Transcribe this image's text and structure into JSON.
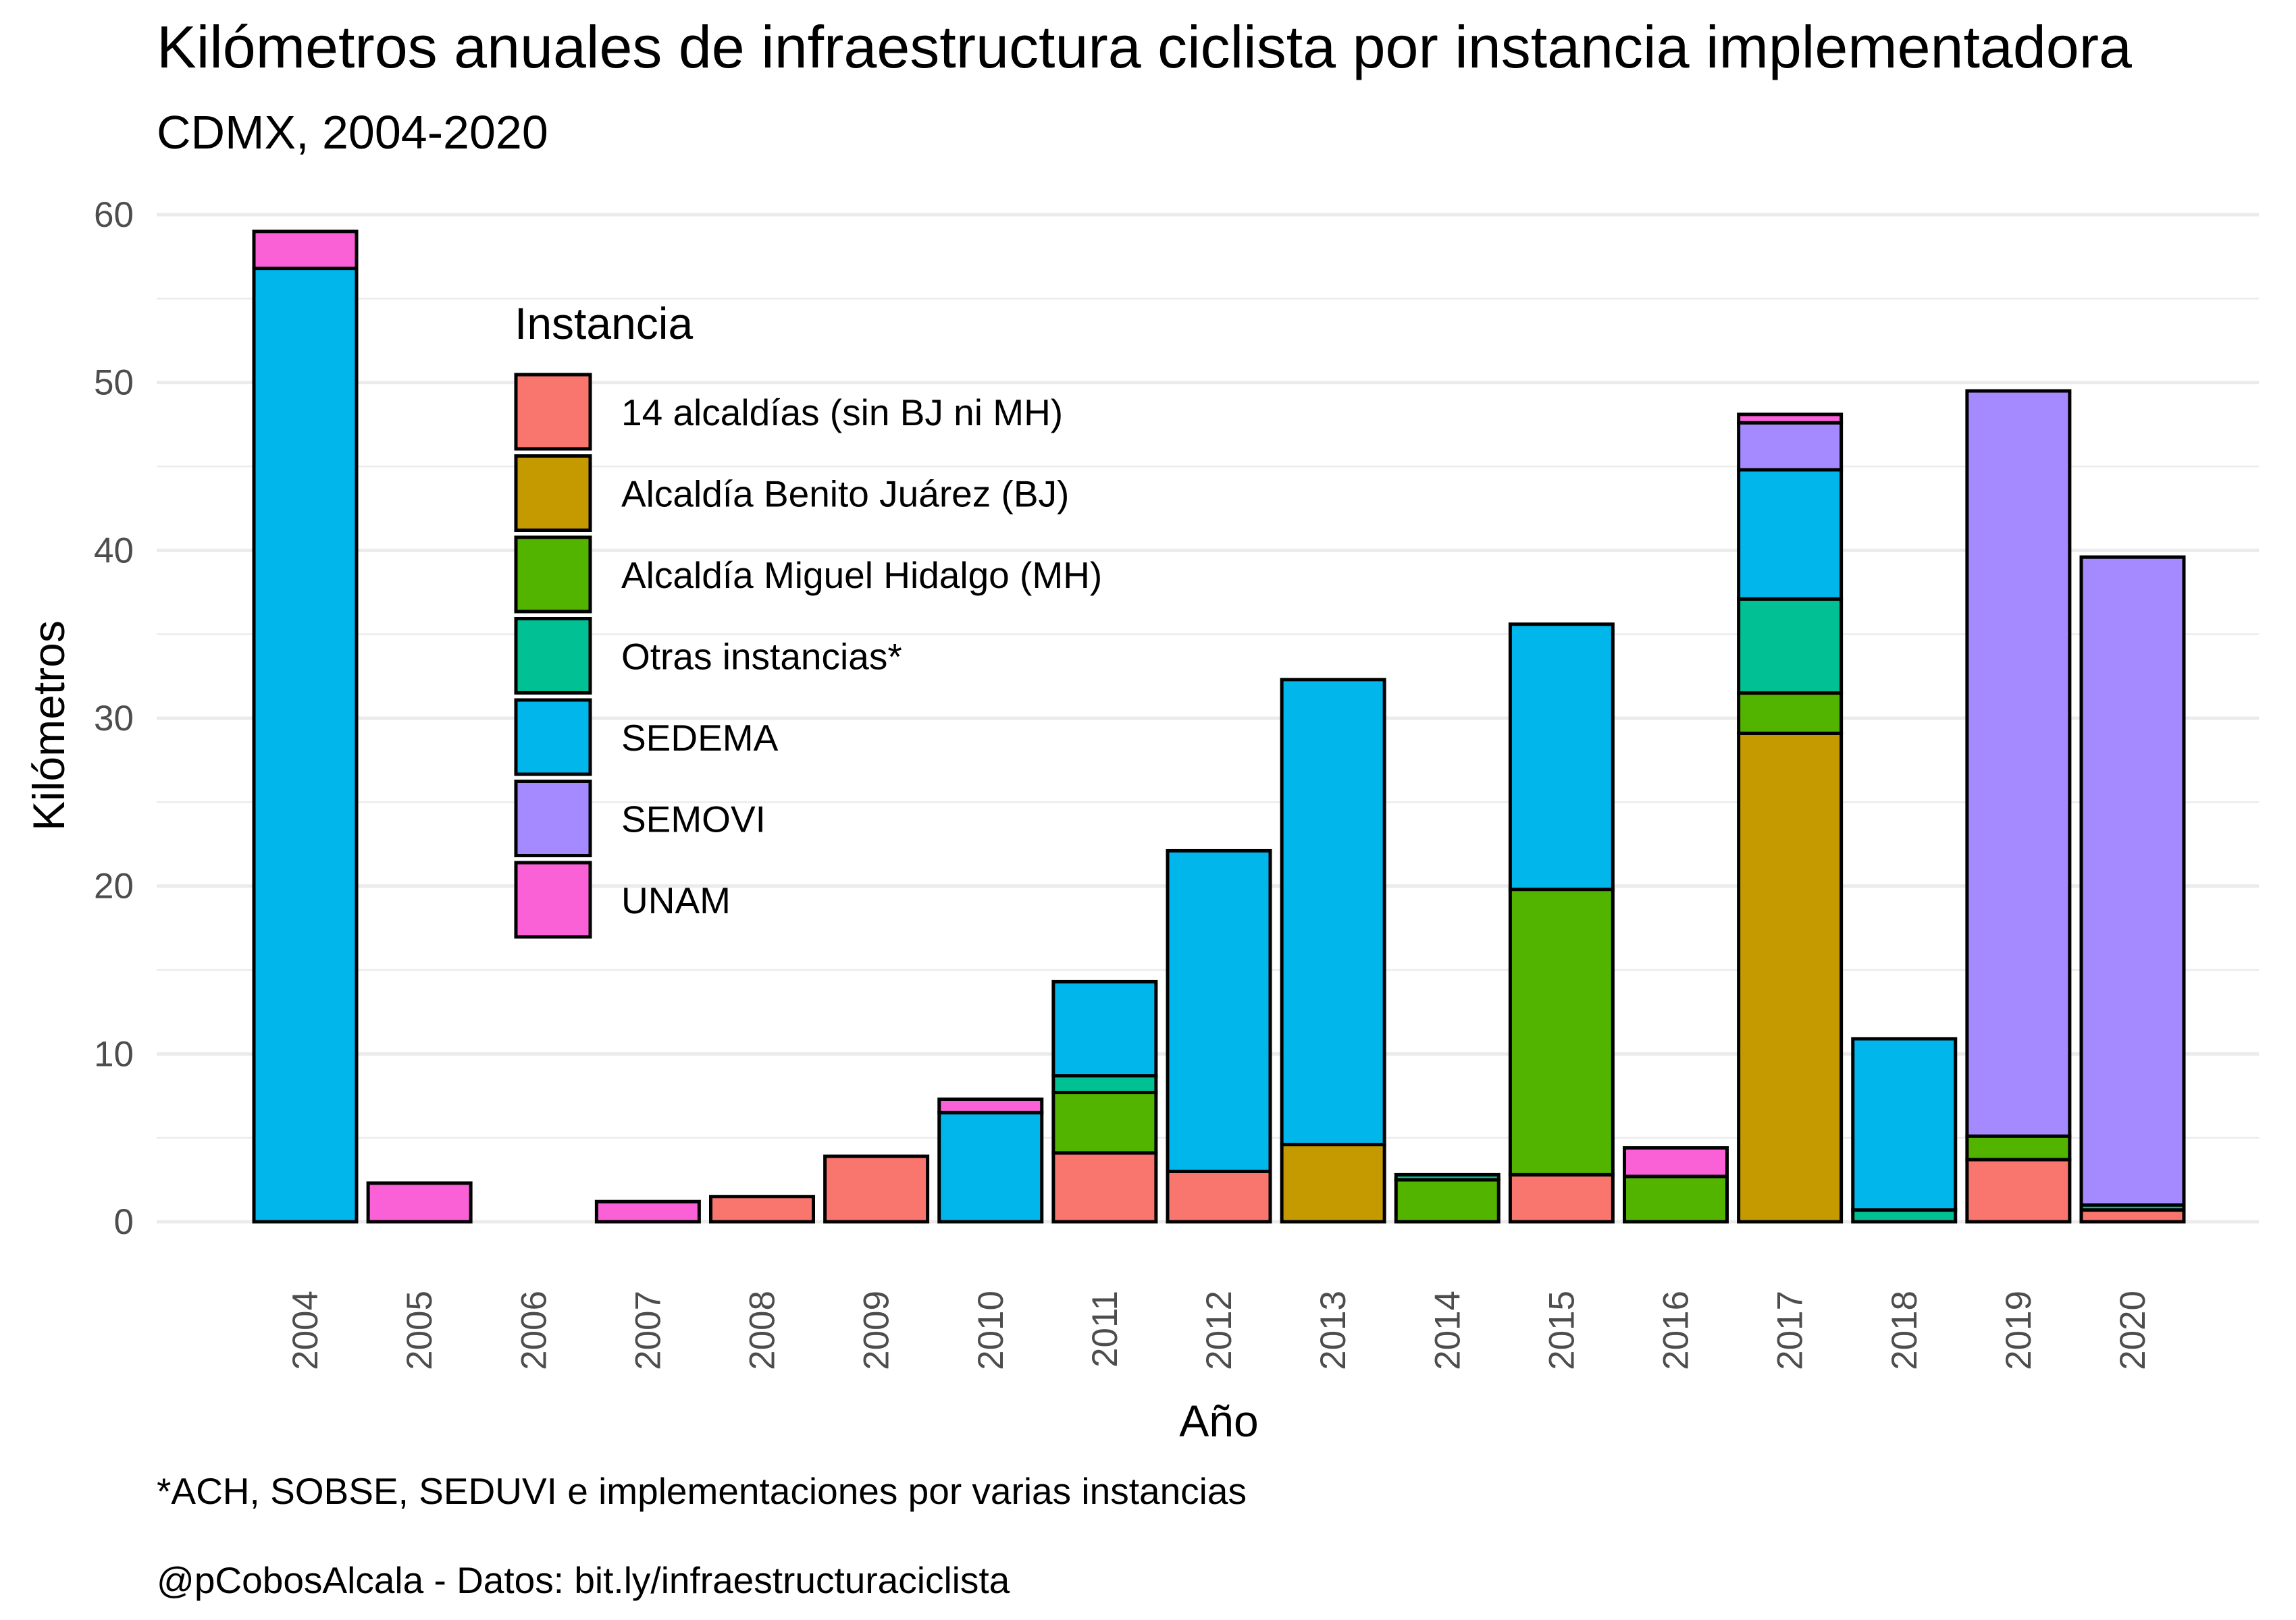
{
  "chart_data": {
    "type": "bar",
    "stacked": true,
    "title": "Kilómetros anuales de infraestructura ciclista por instancia implementadora",
    "subtitle": "CDMX, 2004-2020",
    "xlabel": "Año",
    "ylabel": "Kilómetros",
    "ylim": [
      0,
      60
    ],
    "yticks": [
      "0",
      "10",
      "20",
      "30",
      "40",
      "50",
      "60"
    ],
    "grid": true,
    "legend": {
      "title": "Instancia",
      "position": "inside-top-left"
    },
    "categories": [
      "2004",
      "2005",
      "2006",
      "2007",
      "2008",
      "2009",
      "2010",
      "2011",
      "2012",
      "2013",
      "2014",
      "2015",
      "2016",
      "2017",
      "2018",
      "2019",
      "2020"
    ],
    "series": [
      {
        "name": "14 alcaldías (sin BJ ni MH)",
        "color": "#F8766D",
        "values": [
          0,
          0,
          0,
          0,
          1.5,
          3.9,
          0,
          4.1,
          3.0,
          0,
          0,
          2.8,
          0,
          0,
          0,
          3.7,
          0.7
        ]
      },
      {
        "name": "Alcaldía Benito Juárez (BJ)",
        "color": "#C49A00",
        "values": [
          0,
          0,
          0,
          0,
          0,
          0,
          0,
          0,
          0,
          4.6,
          0,
          0,
          0,
          29.1,
          0,
          0,
          0
        ]
      },
      {
        "name": "Alcaldía Miguel Hidalgo (MH)",
        "color": "#53B400",
        "values": [
          0,
          0,
          0,
          0,
          0,
          0,
          0,
          3.6,
          0,
          0,
          2.5,
          17.0,
          2.7,
          2.4,
          0,
          1.4,
          0
        ]
      },
      {
        "name": "Otras instancias*",
        "color": "#00C094",
        "values": [
          0,
          0,
          0,
          0,
          0,
          0,
          0,
          1.0,
          0,
          0,
          0.3,
          0,
          0,
          5.6,
          0.7,
          0,
          0.3
        ]
      },
      {
        "name": "SEDEMA",
        "color": "#00B6EB",
        "values": [
          56.8,
          0,
          0,
          0,
          0,
          0,
          6.5,
          5.6,
          19.1,
          27.7,
          0,
          15.8,
          0,
          7.7,
          10.2,
          0,
          0
        ]
      },
      {
        "name": "SEMOVI",
        "color": "#A58AFF",
        "values": [
          0,
          0,
          0,
          0,
          0,
          0,
          0,
          0,
          0,
          0,
          0,
          0,
          0,
          2.8,
          0,
          44.4,
          38.6
        ]
      },
      {
        "name": "UNAM",
        "color": "#FB61D7",
        "values": [
          2.2,
          2.3,
          0,
          1.2,
          0,
          0,
          0.8,
          0,
          0,
          0,
          0,
          0,
          1.7,
          0.5,
          0,
          0,
          0
        ]
      }
    ]
  },
  "captions": {
    "note": "*ACH, SOBSE, SEDUVI e implementaciones por varias instancias",
    "source": "@pCobosAlcala - Datos: bit.ly/infraestructuraciclista"
  }
}
